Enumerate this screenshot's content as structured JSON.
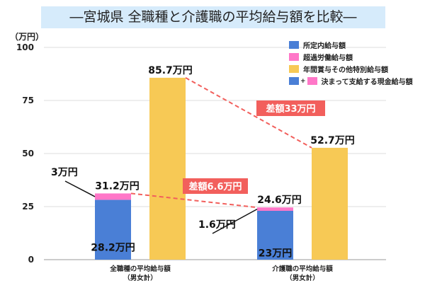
{
  "title": "―宮城県 全職種と介護職の平均給与額を比較―",
  "chart_data": {
    "type": "bar",
    "title": "―宮城県 全職種と介護職の平均給与額を比較―",
    "ylabel": "（万円）",
    "ylim": [
      0,
      100
    ],
    "yticks": [
      "0",
      "25",
      "50",
      "75",
      "100"
    ],
    "grid": true,
    "legend_position": "top-right",
    "categories": [
      [
        "全職種の平均給与額",
        "（男女計）"
      ],
      [
        "介護職の平均給与額",
        "（男女計）"
      ]
    ],
    "series": [
      {
        "name": "所定内給与額",
        "color": "#4a7fd6",
        "values": [
          28.2,
          23
        ],
        "labels": [
          "28.2万円",
          "23万円"
        ]
      },
      {
        "name": "超過労働給与額",
        "color": "#ff77c8",
        "values": [
          3,
          1.6
        ],
        "labels": [
          "3万円",
          "1.6万円"
        ]
      },
      {
        "name": "年間賞与その他特別給与額",
        "color": "#f7c955",
        "values": [
          85.7,
          52.7
        ],
        "labels": [
          "85.7万円",
          "52.7万円"
        ]
      }
    ],
    "stack_totals": {
      "name": "決まって支給する現金給与額",
      "values": [
        31.2,
        24.6
      ],
      "labels": [
        "31.2万円",
        "24.6万円"
      ]
    },
    "annotations": [
      {
        "text": "差額33万円",
        "between": "年間賞与その他特別給与額"
      },
      {
        "text": "差額6.6万円",
        "between": "決まって支給する現金給与額"
      }
    ],
    "annotation_color": "#f25f5c",
    "legend": {
      "combined_label": "決まって支給する現金給与額",
      "plus": "+"
    }
  }
}
